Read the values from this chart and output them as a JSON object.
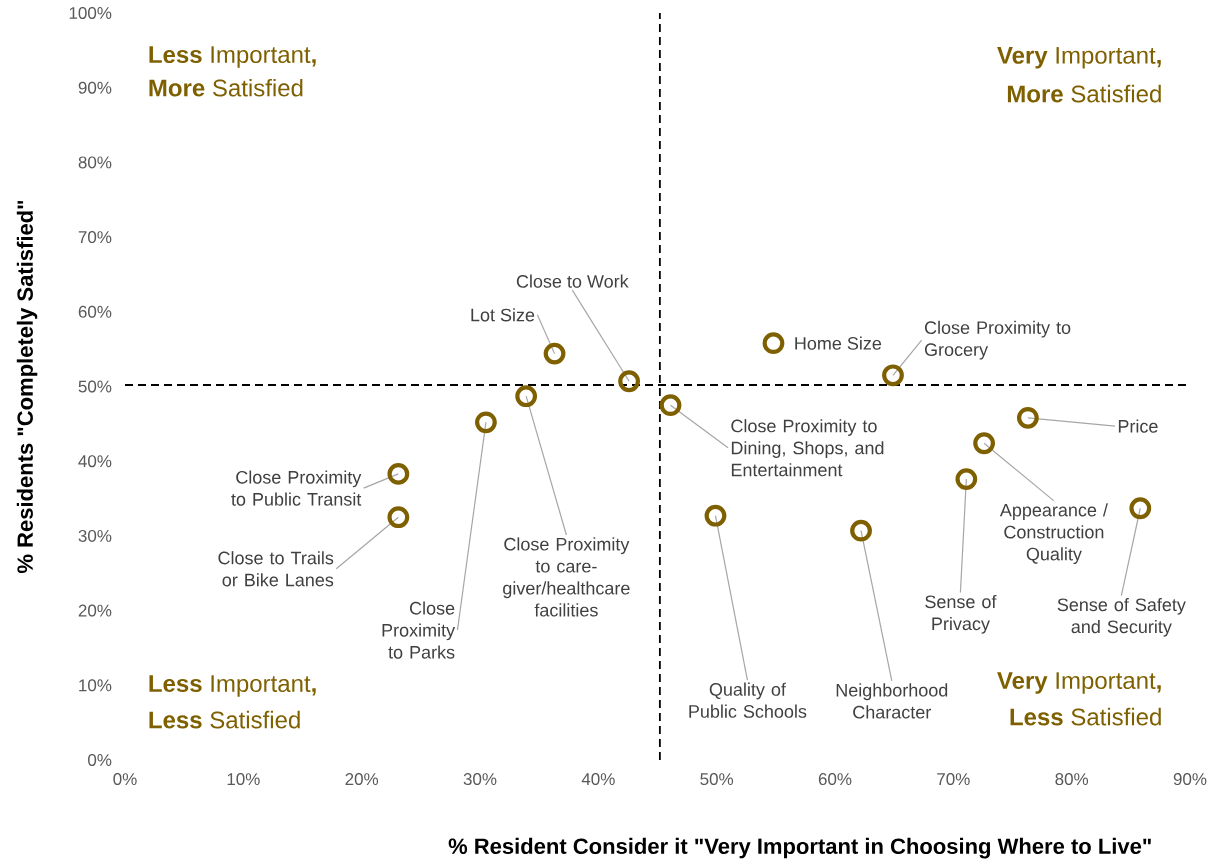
{
  "chart_data": {
    "type": "scatter",
    "xlabel": "% Resident Consider it \"Very Important in Choosing Where to Live\"",
    "ylabel": "% Residents \"Completely Satisfied\"",
    "marker": "circle",
    "series": [
      {
        "color": "#7f6000",
        "x": [
          23.1,
          23.1,
          30.5,
          33.9,
          36.3,
          42.6,
          46.1,
          49.9,
          54.8,
          64.9,
          62.2,
          76.3,
          72.6,
          71.1,
          85.8
        ],
        "values": [
          38.3,
          32.5,
          45.2,
          48.7,
          54.4,
          50.7,
          47.5,
          32.7,
          55.8,
          51.5,
          30.7,
          45.8,
          42.4,
          37.6,
          33.7
        ]
      }
    ],
    "xlim": [
      0,
      90
    ],
    "ylim": [
      0,
      100
    ],
    "xticks": [
      {
        "value": 0,
        "label": "0%"
      },
      {
        "value": 10,
        "label": "10%"
      },
      {
        "value": 20,
        "label": "20%"
      },
      {
        "value": 30,
        "label": "30%"
      },
      {
        "value": 40,
        "label": "40%"
      },
      {
        "value": 50,
        "label": "50%"
      },
      {
        "value": 60,
        "label": "60%"
      },
      {
        "value": 70,
        "label": "70%"
      },
      {
        "value": 80,
        "label": "80%"
      },
      {
        "value": 90,
        "label": "90%"
      }
    ],
    "yticks": [
      {
        "value": 0,
        "label": "0%"
      },
      {
        "value": 10,
        "label": "10%"
      },
      {
        "value": 20,
        "label": "20%"
      },
      {
        "value": 30,
        "label": "30%"
      },
      {
        "value": 40,
        "label": "40%"
      },
      {
        "value": 50,
        "label": "50%"
      },
      {
        "value": 60,
        "label": "60%"
      },
      {
        "value": 70,
        "label": "70%"
      },
      {
        "value": 80,
        "label": "80%"
      },
      {
        "value": 90,
        "label": "90%"
      },
      {
        "value": 100,
        "label": "100%"
      }
    ],
    "ref_lines": [
      {
        "axis": "x",
        "value": 45.2,
        "line_style": "dashed",
        "color": "#000000"
      },
      {
        "axis": "y",
        "value": 50.2,
        "line_style": "dashed",
        "color": "#000000"
      }
    ],
    "annotations": [
      "**Less** Important**,**",
      "**More** Satisfied",
      "**Very** Important**,**",
      "**More** Satisfied",
      "**Less** Important**,**",
      "**Less** Satisfied",
      "**Very** Important**,**",
      "**Less** Satisfied",
      {
        "text": "Close Proximity to Public Transit",
        "x": 23.1,
        "y": 38.3
      },
      {
        "text": "Close to Trails or Bike Lanes",
        "x": 23.1,
        "y": 32.5
      },
      {
        "text": "Close Proximity to Parks",
        "x": 30.5,
        "y": 45.2
      },
      {
        "text": "Close Proximity to care-giver/healthcare facilities",
        "x": 33.9,
        "y": 48.7
      },
      {
        "text": "Lot Size",
        "x": 36.3,
        "y": 54.4
      },
      {
        "text": "Close to Work",
        "x": 42.6,
        "y": 50.7
      },
      {
        "text": "Close Proximity to Dining, Shops, and Entertainment",
        "x": 46.1,
        "y": 47.5
      },
      {
        "text": "Quality of Public Schools",
        "x": 49.9,
        "y": 32.7
      },
      {
        "text": "Home Size",
        "x": 54.8,
        "y": 55.8
      },
      {
        "text": "Close Proximity to Grocery",
        "x": 64.9,
        "y": 51.5
      },
      {
        "text": "Neighborhood Character",
        "x": 62.2,
        "y": 30.7
      },
      {
        "text": "Price",
        "x": 76.3,
        "y": 45.8
      },
      {
        "text": "Appearance / Construction Quality",
        "x": 72.6,
        "y": 42.4
      },
      {
        "text": "Sense of Privacy",
        "x": 71.1,
        "y": 37.6
      },
      {
        "text": "Sense of Safety and Security",
        "x": 85.8,
        "y": 33.7
      }
    ]
  }
}
